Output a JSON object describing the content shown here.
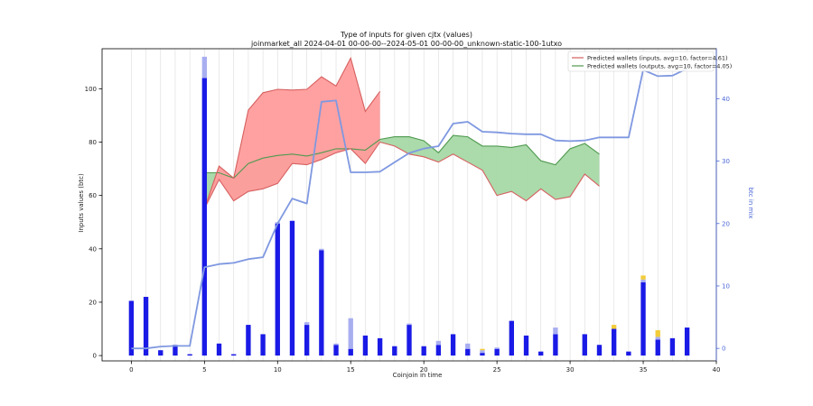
{
  "chart_data": {
    "type": "bar",
    "title": "Type of inputs for given cjtx (values)",
    "subtitle": "joinmarket_all 2024-04-01 00-00-00--2024-05-01 00-00-00_unknown-static-100-1utxo",
    "xlabel": "Coinjoin in time",
    "ylabel": "Inputs values (btc)",
    "y2label": "btc in mix",
    "xlim": [
      -2,
      40
    ],
    "ylim": [
      -2,
      115
    ],
    "y2lim": [
      -2,
      48
    ],
    "xticks": [
      "0",
      "5",
      "10",
      "15",
      "20",
      "25",
      "30",
      "35",
      "40"
    ],
    "yticks": [
      "0",
      "20",
      "40",
      "60",
      "80",
      "100"
    ],
    "y2ticks": [
      "0",
      "10",
      "20",
      "30",
      "40"
    ],
    "grid_x": true,
    "legend_position": "top-right",
    "colors": {
      "bar_main": "#1a1ae6",
      "bar_light": "#a8aef0",
      "bar_yellow": "#f2cc3a",
      "line_mix": "#7f98e0",
      "red_fill": "#ff9c9c",
      "red_line": "#d65f5f",
      "green_fill": "#a6d8a6",
      "green_line": "#4f9a4f",
      "axis2_color": "#4a67d6"
    },
    "legend": [
      {
        "label": "Predicted wallets (inputs, avg=10, factor=4.61)",
        "color": "#d65f5f"
      },
      {
        "label": "Predicted wallets (outputs, avg=10, factor=4.05)",
        "color": "#4f9a4f"
      }
    ],
    "bars": [
      {
        "x": 0,
        "main": 20.5,
        "light": 0,
        "yellow": 0
      },
      {
        "x": 1,
        "main": 22,
        "light": 0,
        "yellow": 0
      },
      {
        "x": 2,
        "main": 2,
        "light": 0,
        "yellow": 0
      },
      {
        "x": 3,
        "main": 4,
        "light": 0,
        "yellow": 0
      },
      {
        "x": 4,
        "main": 0.5,
        "light": 0,
        "yellow": 0
      },
      {
        "x": 5,
        "main": 104,
        "light": 8,
        "yellow": 0
      },
      {
        "x": 6,
        "main": 4.5,
        "light": 0,
        "yellow": 0
      },
      {
        "x": 7,
        "main": 0.5,
        "light": 0,
        "yellow": 0
      },
      {
        "x": 8,
        "main": 11.5,
        "light": 0,
        "yellow": 0
      },
      {
        "x": 9,
        "main": 8,
        "light": 0,
        "yellow": 0
      },
      {
        "x": 10,
        "main": 49.5,
        "light": 0.5,
        "yellow": 0
      },
      {
        "x": 11,
        "main": 50.5,
        "light": 0,
        "yellow": 0
      },
      {
        "x": 12,
        "main": 11.5,
        "light": 1,
        "yellow": 0
      },
      {
        "x": 13,
        "main": 39.5,
        "light": 0.5,
        "yellow": 0
      },
      {
        "x": 14,
        "main": 4,
        "light": 0.5,
        "yellow": 0
      },
      {
        "x": 15,
        "main": 2.5,
        "light": 11.5,
        "yellow": 0
      },
      {
        "x": 16,
        "main": 7.5,
        "light": 0,
        "yellow": 0
      },
      {
        "x": 17,
        "main": 6.5,
        "light": 0,
        "yellow": 0
      },
      {
        "x": 18,
        "main": 3.5,
        "light": 0,
        "yellow": 0
      },
      {
        "x": 19,
        "main": 11.5,
        "light": 0.5,
        "yellow": 0
      },
      {
        "x": 20,
        "main": 3.5,
        "light": 0,
        "yellow": 0
      },
      {
        "x": 21,
        "main": 4,
        "light": 1.5,
        "yellow": 0
      },
      {
        "x": 22,
        "main": 8,
        "light": 0,
        "yellow": 0
      },
      {
        "x": 23,
        "main": 2.5,
        "light": 2,
        "yellow": 0
      },
      {
        "x": 24,
        "main": 1,
        "light": 1,
        "yellow": 0.5
      },
      {
        "x": 25,
        "main": 2.5,
        "light": 0.5,
        "yellow": 0
      },
      {
        "x": 26,
        "main": 13,
        "light": 0,
        "yellow": 0
      },
      {
        "x": 27,
        "main": 7.5,
        "light": 0,
        "yellow": 0
      },
      {
        "x": 28,
        "main": 1.5,
        "light": 0,
        "yellow": 0
      },
      {
        "x": 29,
        "main": 8,
        "light": 2.5,
        "yellow": 0
      },
      {
        "x": 30,
        "main": 0,
        "light": 0,
        "yellow": 0
      },
      {
        "x": 31,
        "main": 8,
        "light": 0,
        "yellow": 0
      },
      {
        "x": 32,
        "main": 4,
        "light": 0,
        "yellow": 0
      },
      {
        "x": 33,
        "main": 10,
        "light": 0,
        "yellow": 1.5
      },
      {
        "x": 34,
        "main": 1.5,
        "light": 0,
        "yellow": 0
      },
      {
        "x": 35,
        "main": 27.5,
        "light": 1,
        "yellow": 1.5
      },
      {
        "x": 36,
        "main": 6,
        "light": 1,
        "yellow": 2.5
      },
      {
        "x": 37,
        "main": 6.5,
        "light": 0,
        "yellow": 0
      },
      {
        "x": 38,
        "main": 10.5,
        "light": 0,
        "yellow": 0
      }
    ],
    "btc_in_mix": {
      "x": [
        0,
        1,
        2,
        3,
        4,
        5,
        6,
        7,
        8,
        9,
        10,
        11,
        12,
        13,
        14,
        15,
        16,
        17,
        18,
        19,
        20,
        21,
        22,
        23,
        24,
        25,
        26,
        27,
        28,
        29,
        30,
        31,
        32,
        33,
        34,
        35,
        36,
        37,
        38
      ],
      "y": [
        0,
        0,
        0.3,
        0.4,
        0.4,
        13,
        13.5,
        13.7,
        14.3,
        14.6,
        20,
        24,
        23.2,
        39.5,
        39.7,
        28.2,
        28.2,
        28.3,
        29.8,
        31.3,
        32,
        32.4,
        36,
        36.3,
        34.7,
        34.6,
        34.4,
        34.3,
        34.3,
        33.3,
        33.2,
        33.3,
        33.8,
        33.8,
        33.8,
        44.6,
        43.6,
        43.7,
        44.8
      ]
    },
    "inputs_band": {
      "x": [
        5,
        6,
        7,
        8,
        9,
        10,
        11,
        12,
        13,
        14,
        15,
        16,
        17
      ],
      "upper": [
        55,
        71,
        66.5,
        92,
        98.5,
        99.8,
        99.5,
        99.8,
        104.5,
        101,
        111.5,
        91.5,
        99
      ],
      "lower": [
        55,
        66,
        58,
        61.5,
        62.5,
        64.5,
        72,
        71.5,
        73.5,
        76,
        77.5,
        72,
        80
      ]
    },
    "inputs_band_tail": {
      "x": [
        17,
        18,
        19,
        20,
        21,
        22,
        23,
        24,
        25,
        26,
        27,
        28,
        29,
        30,
        31,
        32
      ],
      "y": [
        80,
        78.5,
        75.5,
        74.5,
        72.5,
        75.5,
        72.5,
        69.5,
        60,
        61.5,
        58,
        62.5,
        58.5,
        59.5,
        68,
        63.5
      ]
    },
    "outputs_band": {
      "x": [
        5,
        6,
        7,
        8,
        9,
        10,
        11,
        12,
        13,
        14,
        15,
        16,
        17,
        18,
        19,
        20,
        21,
        22,
        23,
        24,
        25,
        26,
        27,
        28,
        29,
        30,
        31,
        32
      ],
      "upper": [
        68.5,
        68.5,
        66.5,
        72,
        74,
        75,
        75.5,
        74.8,
        76,
        77.5,
        77.5,
        77,
        81,
        82,
        82,
        80.5,
        76,
        82.5,
        82,
        78.5,
        78.5,
        78,
        79,
        73,
        71.5,
        77.5,
        79.5,
        75.5
      ],
      "lower": [
        55,
        66,
        58,
        61.5,
        62.5,
        64.5,
        72,
        71.5,
        73.5,
        76,
        77.5,
        72,
        80,
        78.5,
        75.5,
        74.5,
        72.5,
        75.5,
        72.5,
        69.5,
        60,
        61.5,
        58,
        62.5,
        58.5,
        59.5,
        68,
        63.5
      ]
    }
  }
}
